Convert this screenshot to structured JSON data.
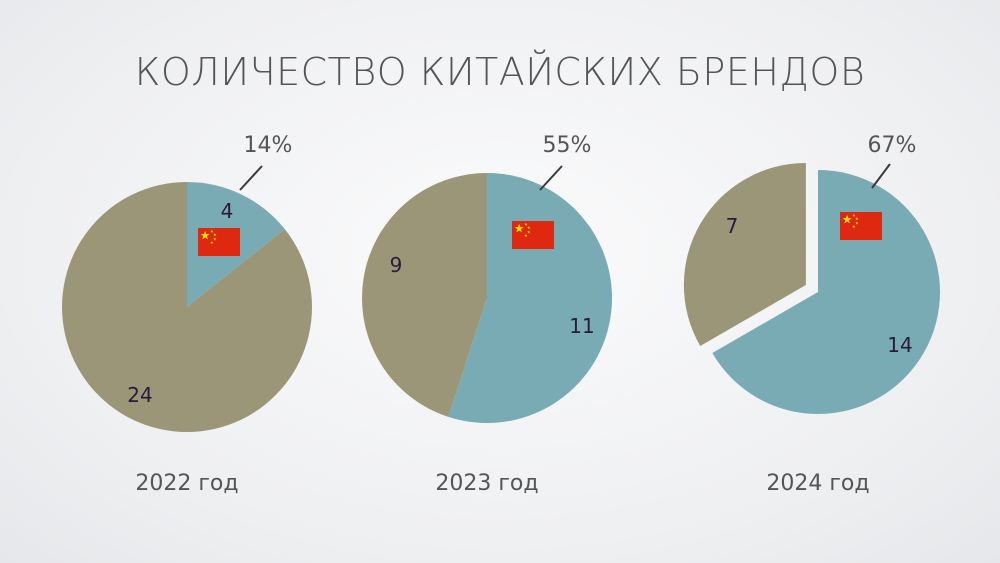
{
  "title": "КОЛИЧЕСТВО КИТАЙСКИХ БРЕНДОВ",
  "colors": {
    "chinese": "#79abb5",
    "other": "#9c9678",
    "text": "#555555",
    "slice_text": "#2c1a3a",
    "flag_red": "#de2910",
    "flag_yellow": "#ffde00"
  },
  "chart_data": [
    {
      "type": "pie",
      "year_label": "2022 год",
      "percent_label": "14%",
      "slices": [
        {
          "value": 4,
          "label": "4",
          "color": "#79abb5",
          "flag": true
        },
        {
          "value": 24,
          "label": "24",
          "color": "#9c9678"
        }
      ]
    },
    {
      "type": "pie",
      "year_label": "2023 год",
      "percent_label": "55%",
      "slices": [
        {
          "value": 11,
          "label": "11",
          "color": "#79abb5",
          "flag": true
        },
        {
          "value": 9,
          "label": "9",
          "color": "#9c9678"
        }
      ]
    },
    {
      "type": "pie",
      "year_label": "2024 год",
      "percent_label": "67%",
      "slices": [
        {
          "value": 14,
          "label": "14",
          "color": "#79abb5",
          "flag": true
        },
        {
          "value": 7,
          "label": "7",
          "color": "#9c9678",
          "exploded": true
        }
      ]
    }
  ]
}
